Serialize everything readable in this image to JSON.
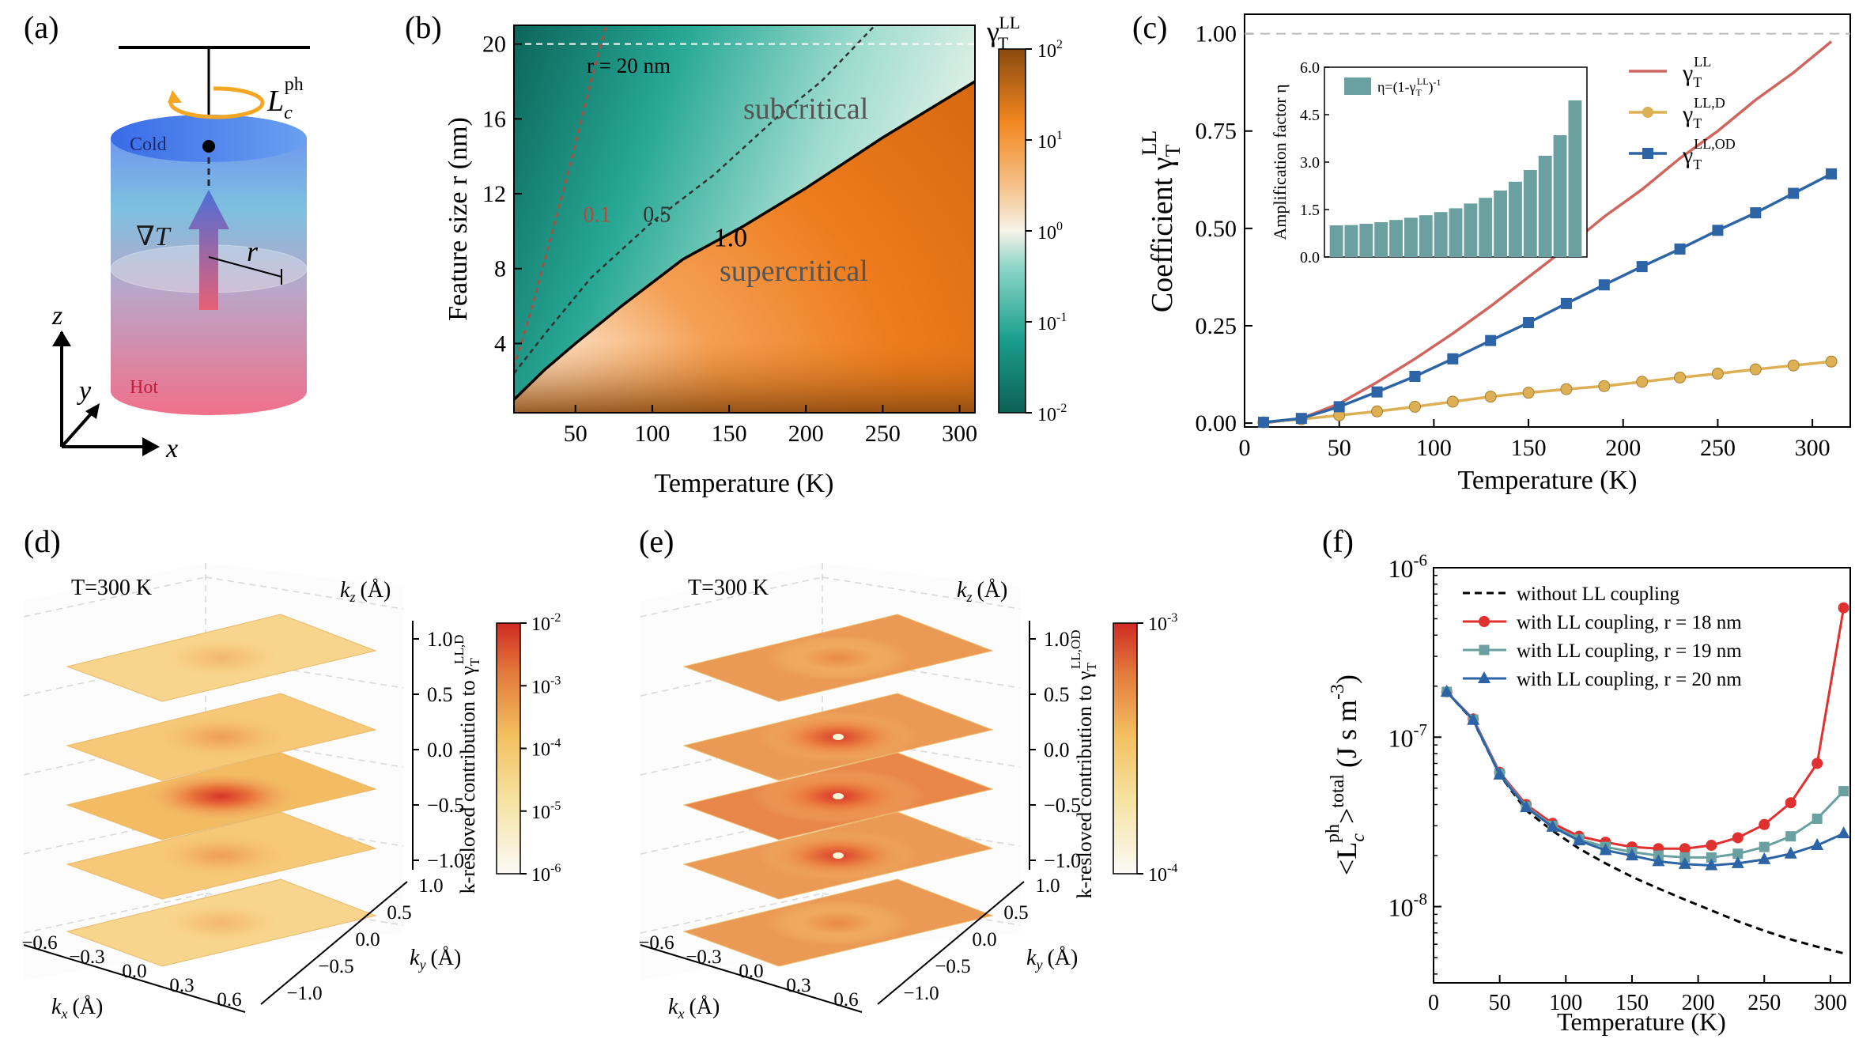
{
  "colors": {
    "teal": "#1a8f7e",
    "orange": "#e86f10",
    "red_line": "#d0655f",
    "gold": "#ddb055",
    "blue": "#2c64a5",
    "sage": "#6aa0a0",
    "heat": "#e0402a"
  },
  "panel_labels": {
    "a": "(a)",
    "b": "(b)",
    "c": "(c)",
    "d": "(d)",
    "e": "(e)",
    "f": "(f)"
  },
  "panel_a": {
    "label_cold": "Cold",
    "label_hot": "Hot",
    "grad_label": "∇T",
    "radius_label": "r",
    "lc_label": "L",
    "lc_sub": "c",
    "lc_sup": "ph",
    "axis_x": "x",
    "axis_y": "y",
    "axis_z": "z"
  },
  "chart_data": [
    {
      "id": "b",
      "type": "heatmap",
      "title": "",
      "xlabel": "Temperature (K)",
      "ylabel": "Feature size r (nm)",
      "xlim": [
        10,
        310
      ],
      "ylim": [
        0.3,
        21
      ],
      "xticks": [
        50,
        100,
        150,
        200,
        250,
        300
      ],
      "yticks": [
        4,
        8,
        12,
        16,
        20
      ],
      "colorbar_label": "γ",
      "colorbar_sub": "T",
      "colorbar_sup": "LL",
      "colorbar_ticks": [
        "10",
        "10",
        "10",
        "10",
        "10"
      ],
      "colorbar_exps": [
        "2",
        "1",
        "0",
        "-1",
        "-2"
      ],
      "annotations": {
        "r_line": "r = 20 nm",
        "sub": "subcritical",
        "super": "supercritical"
      },
      "contours": [
        {
          "level": "0.1",
          "x": [
            10,
            22,
            35,
            48,
            60,
            70
          ],
          "y": [
            2.7,
            6,
            10,
            14,
            18,
            21
          ]
        },
        {
          "level": "0.5",
          "x": [
            10,
            30,
            60,
            100,
            140,
            180,
            210,
            245
          ],
          "y": [
            2.4,
            4.5,
            7.5,
            10.5,
            13,
            16,
            18,
            21
          ]
        },
        {
          "level": "1.0",
          "x": [
            10,
            30,
            50,
            80,
            120,
            160,
            200,
            250,
            310
          ],
          "y": [
            1.0,
            2.6,
            4,
            6,
            8.5,
            10.3,
            12.3,
            15,
            18
          ]
        }
      ]
    },
    {
      "id": "c",
      "type": "line",
      "xlabel": "Temperature (K)",
      "ylabel": "Coefficient γ",
      "ylabel_sub": "T",
      "ylabel_sup": "LL",
      "xlim": [
        0,
        320
      ],
      "ylim": [
        -0.01,
        1.05
      ],
      "xticks": [
        0,
        50,
        100,
        150,
        200,
        250,
        300
      ],
      "yticks": [
        "0.00",
        "0.25",
        "0.50",
        "0.75",
        "1.00"
      ],
      "ytick_values": [
        0,
        0.25,
        0.5,
        0.75,
        1.0
      ],
      "legend": [
        {
          "name": "γ",
          "sub": "T",
          "sup": "LL"
        },
        {
          "name": "γ",
          "sub": "T",
          "sup": "LL,D"
        },
        {
          "name": "γ",
          "sub": "T",
          "sup": "LL,OD"
        }
      ],
      "series": [
        {
          "name": "γ_T^LL",
          "x": [
            10,
            30,
            50,
            70,
            90,
            110,
            130,
            150,
            170,
            190,
            210,
            230,
            250,
            270,
            290,
            310
          ],
          "y": [
            0.0,
            0.012,
            0.05,
            0.105,
            0.165,
            0.23,
            0.3,
            0.375,
            0.45,
            0.53,
            0.6,
            0.68,
            0.75,
            0.83,
            0.9,
            0.98
          ]
        },
        {
          "name": "γ_T^LL,D",
          "x": [
            10,
            30,
            50,
            70,
            90,
            110,
            130,
            150,
            170,
            190,
            210,
            230,
            250,
            270,
            290,
            310
          ],
          "y": [
            0.002,
            0.01,
            0.02,
            0.03,
            0.042,
            0.055,
            0.068,
            0.078,
            0.087,
            0.095,
            0.106,
            0.117,
            0.127,
            0.138,
            0.148,
            0.158
          ]
        },
        {
          "name": "γ_T^LL,OD",
          "x": [
            10,
            30,
            50,
            70,
            90,
            110,
            130,
            150,
            170,
            190,
            210,
            230,
            250,
            270,
            290,
            310
          ],
          "y": [
            0.002,
            0.012,
            0.042,
            0.08,
            0.12,
            0.165,
            0.212,
            0.258,
            0.307,
            0.355,
            0.402,
            0.447,
            0.495,
            0.54,
            0.59,
            0.64
          ]
        }
      ],
      "ref_line": 1.0
    },
    {
      "id": "c_inset",
      "type": "bar",
      "ylabel": "Amplification factor η",
      "legend": "η=(1-γ",
      "legend_sub": "T",
      "legend_sup": "LL",
      "legend_tail": ")",
      "legend_exp": "-1",
      "ylim": [
        0,
        6
      ],
      "yticks": [
        "0.0",
        "1.5",
        "3.0",
        "4.5",
        "6.0"
      ],
      "ytick_values": [
        0,
        1.5,
        3,
        4.5,
        6
      ],
      "values": [
        1.0,
        1.01,
        1.05,
        1.1,
        1.17,
        1.24,
        1.32,
        1.42,
        1.54,
        1.69,
        1.87,
        2.1,
        2.38,
        2.75,
        3.2,
        3.85,
        4.95
      ]
    },
    {
      "id": "d",
      "type": "heatmap",
      "annotation": "T=300 K",
      "xlabel": "k",
      "xlabel_sub": "x",
      "xlabel_unit": "(Å)",
      "ylabel": "k",
      "ylabel_sub": "y",
      "ylabel_unit": "(Å)",
      "zlabel": "k",
      "zlabel_sub": "z",
      "zlabel_unit": "(Å)",
      "xticks": [
        "−0.6",
        "−0.3",
        "0.0",
        "0.3",
        "0.6"
      ],
      "yticks": [
        "1.0",
        "0.5",
        "0.0",
        "−0.5",
        "−1.0"
      ],
      "zticks": [
        "1.0",
        "0.5",
        "0.0",
        "−0.5",
        "−1.0"
      ],
      "colorbar_label": "k-resloved contribution to γ",
      "colorbar_sub": "T",
      "colorbar_sup": "LL,D",
      "colorbar_ticks": [
        "10",
        "10",
        "10",
        "10",
        "10"
      ],
      "colorbar_exps": [
        "-2",
        "-3",
        "-4",
        "-5",
        "-6"
      ],
      "layer_intensity": [
        0.2,
        0.45,
        0.85,
        0.45,
        0.2
      ]
    },
    {
      "id": "e",
      "type": "heatmap",
      "annotation": "T=300 K",
      "xlabel": "k",
      "xlabel_sub": "x",
      "xlabel_unit": "(Å)",
      "ylabel": "k",
      "ylabel_sub": "y",
      "ylabel_unit": "(Å)",
      "zlabel": "k",
      "zlabel_sub": "z",
      "zlabel_unit": "(Å)",
      "xticks": [
        "−0.6",
        "−0.3",
        "0.0",
        "0.3",
        "0.6"
      ],
      "yticks": [
        "1.0",
        "0.5",
        "0.0",
        "−0.5",
        "−1.0"
      ],
      "zticks": [
        "1.0",
        "0.5",
        "0.0",
        "−0.5",
        "−1.0"
      ],
      "colorbar_label": "k-resloved contribution to γ",
      "colorbar_sub": "T",
      "colorbar_sup": "LL,OD",
      "colorbar_ticks": [
        "10",
        "10"
      ],
      "colorbar_exps": [
        "-3",
        "-4"
      ],
      "layer_intensity": [
        0.55,
        0.75,
        0.9,
        0.75,
        0.55
      ]
    },
    {
      "id": "f",
      "type": "line",
      "xlabel": "Temperature (K)",
      "ylabel": "<L",
      "ylabel_sub": "c",
      "ylabel_sup": "ph",
      "ylabel_tail": ">",
      "ylabel_sup2": "total",
      "ylabel_unit": "(J s m",
      "ylabel_unit_sup": "-3",
      "ylabel_unit_tail": ")",
      "xlim": [
        0,
        315
      ],
      "ylim_log": [
        -8.45,
        -6.0
      ],
      "xticks": [
        0,
        50,
        100,
        150,
        200,
        250,
        300
      ],
      "yticks": [
        "10",
        "10",
        "10"
      ],
      "ytick_exps": [
        "-6",
        "-7",
        "-8"
      ],
      "ytick_log": [
        -6,
        -7,
        -8
      ],
      "series": [
        {
          "name": "without LL coupling",
          "style": "dashed",
          "x": [
            10,
            30,
            50,
            70,
            90,
            110,
            130,
            150,
            170,
            190,
            210,
            230,
            250,
            270,
            290,
            310
          ],
          "y": [
            1.85e-07,
            1.25e-07,
            6e-08,
            3.7e-08,
            2.8e-08,
            2.2e-08,
            1.8e-08,
            1.5e-08,
            1.28e-08,
            1.1e-08,
            9.5e-09,
            8.2e-09,
            7.2e-09,
            6.4e-09,
            5.8e-09,
            5.3e-09
          ]
        },
        {
          "name": "with LL coupling, r = 18 nm",
          "marker": "circle",
          "x": [
            10,
            30,
            50,
            70,
            90,
            110,
            130,
            150,
            170,
            190,
            210,
            230,
            250,
            270,
            290,
            310
          ],
          "y": [
            1.85e-07,
            1.28e-07,
            6.2e-08,
            4e-08,
            3.1e-08,
            2.6e-08,
            2.4e-08,
            2.25e-08,
            2.2e-08,
            2.2e-08,
            2.3e-08,
            2.55e-08,
            3.05e-08,
            4.1e-08,
            7e-08,
            5.8e-07
          ]
        },
        {
          "name": "with LL coupling, r = 19 nm",
          "marker": "square",
          "x": [
            10,
            30,
            50,
            70,
            90,
            110,
            130,
            150,
            170,
            190,
            210,
            230,
            250,
            270,
            290,
            310
          ],
          "y": [
            1.85e-07,
            1.27e-07,
            6.1e-08,
            3.9e-08,
            3e-08,
            2.5e-08,
            2.25e-08,
            2.1e-08,
            2e-08,
            1.95e-08,
            1.95e-08,
            2.05e-08,
            2.25e-08,
            2.6e-08,
            3.3e-08,
            4.8e-08
          ]
        },
        {
          "name": "with LL coupling, r = 20 nm",
          "marker": "triangle",
          "x": [
            10,
            30,
            50,
            70,
            90,
            110,
            130,
            150,
            170,
            190,
            210,
            230,
            250,
            270,
            290,
            310
          ],
          "y": [
            1.85e-07,
            1.26e-07,
            6e-08,
            3.85e-08,
            2.95e-08,
            2.45e-08,
            2.15e-08,
            2e-08,
            1.85e-08,
            1.78e-08,
            1.75e-08,
            1.8e-08,
            1.9e-08,
            2.05e-08,
            2.3e-08,
            2.7e-08
          ]
        }
      ]
    }
  ]
}
